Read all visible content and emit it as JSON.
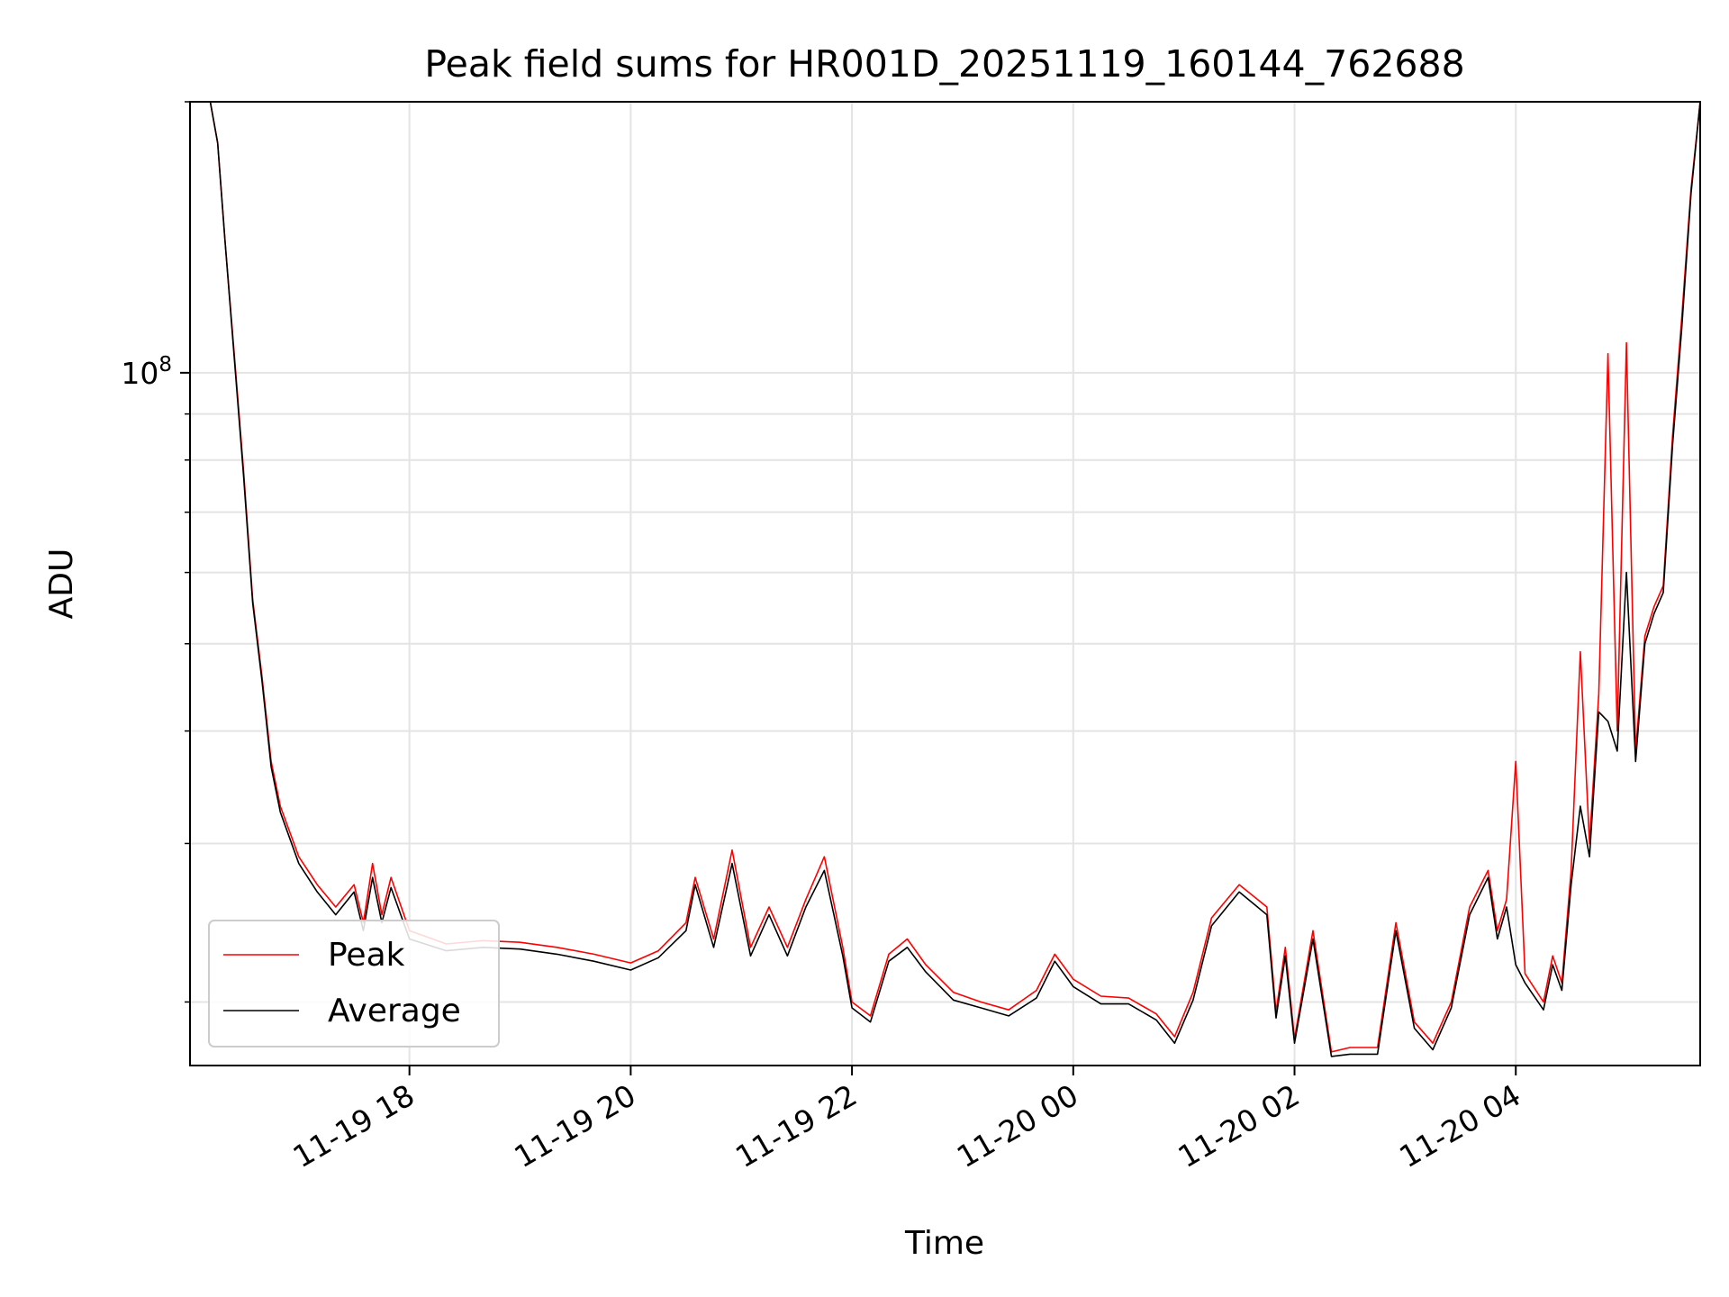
{
  "chart_data": {
    "type": "line",
    "title": "Peak field sums for HR001D_20251119_160144_762688",
    "xlabel": "Time",
    "ylabel": "ADU",
    "yscale": "log",
    "grid": true,
    "legend_position": "lower-left",
    "xlim": [
      "2025-11-19 16:01",
      "2025-11-20 05:40"
    ],
    "ylim": [
      17000000,
      200000000
    ],
    "x_ticks": [
      {
        "t": "2025-11-19 18:00",
        "label": "11-19 18"
      },
      {
        "t": "2025-11-19 20:00",
        "label": "11-19 20"
      },
      {
        "t": "2025-11-19 22:00",
        "label": "11-19 22"
      },
      {
        "t": "2025-11-20 00:00",
        "label": "11-20 00"
      },
      {
        "t": "2025-11-20 02:00",
        "label": "11-20 02"
      },
      {
        "t": "2025-11-20 04:00",
        "label": "11-20 04"
      }
    ],
    "y_major_ticks": [
      {
        "value": 100000000,
        "label": "10",
        "exponent": "8"
      }
    ],
    "y_minor_ticks": [
      20000000,
      30000000,
      40000000,
      50000000,
      60000000,
      70000000,
      80000000,
      90000000,
      200000000
    ],
    "series": [
      {
        "name": "Peak",
        "color": "#ff0000",
        "points": [
          [
            "2025-11-19 16:12",
            200000000
          ],
          [
            "2025-11-19 16:16",
            180000000
          ],
          [
            "2025-11-19 16:20",
            140000000
          ],
          [
            "2025-11-19 16:25",
            105000000
          ],
          [
            "2025-11-19 16:30",
            78000000
          ],
          [
            "2025-11-19 16:35",
            56000000
          ],
          [
            "2025-11-19 16:40",
            46000000
          ],
          [
            "2025-11-19 16:45",
            37000000
          ],
          [
            "2025-11-19 16:50",
            33000000
          ],
          [
            "2025-11-19 17:00",
            29000000
          ],
          [
            "2025-11-19 17:10",
            27000000
          ],
          [
            "2025-11-19 17:20",
            25500000
          ],
          [
            "2025-11-19 17:30",
            27000000
          ],
          [
            "2025-11-19 17:35",
            24500000
          ],
          [
            "2025-11-19 17:40",
            28500000
          ],
          [
            "2025-11-19 17:45",
            25000000
          ],
          [
            "2025-11-19 17:50",
            27500000
          ],
          [
            "2025-11-19 18:00",
            24000000
          ],
          [
            "2025-11-19 18:20",
            23200000
          ],
          [
            "2025-11-19 18:40",
            23400000
          ],
          [
            "2025-11-19 19:00",
            23300000
          ],
          [
            "2025-11-19 19:20",
            23000000
          ],
          [
            "2025-11-19 19:40",
            22600000
          ],
          [
            "2025-11-19 20:00",
            22100000
          ],
          [
            "2025-11-19 20:15",
            22800000
          ],
          [
            "2025-11-19 20:30",
            24500000
          ],
          [
            "2025-11-19 20:35",
            27500000
          ],
          [
            "2025-11-19 20:45",
            23500000
          ],
          [
            "2025-11-19 20:55",
            29500000
          ],
          [
            "2025-11-19 21:05",
            23000000
          ],
          [
            "2025-11-19 21:15",
            25500000
          ],
          [
            "2025-11-19 21:25",
            23000000
          ],
          [
            "2025-11-19 21:35",
            26000000
          ],
          [
            "2025-11-19 21:45",
            29000000
          ],
          [
            "2025-11-19 21:55",
            23000000
          ],
          [
            "2025-11-19 22:00",
            20000000
          ],
          [
            "2025-11-19 22:10",
            19300000
          ],
          [
            "2025-11-19 22:20",
            22600000
          ],
          [
            "2025-11-19 22:30",
            23500000
          ],
          [
            "2025-11-19 22:40",
            22000000
          ],
          [
            "2025-11-19 22:55",
            20500000
          ],
          [
            "2025-11-19 23:10",
            20000000
          ],
          [
            "2025-11-19 23:25",
            19600000
          ],
          [
            "2025-11-19 23:40",
            20600000
          ],
          [
            "2025-11-19 23:50",
            22600000
          ],
          [
            "2025-11-20 00:00",
            21200000
          ],
          [
            "2025-11-20 00:15",
            20300000
          ],
          [
            "2025-11-20 00:30",
            20200000
          ],
          [
            "2025-11-20 00:45",
            19400000
          ],
          [
            "2025-11-20 00:55",
            18300000
          ],
          [
            "2025-11-20 01:05",
            20500000
          ],
          [
            "2025-11-20 01:15",
            24800000
          ],
          [
            "2025-11-20 01:30",
            27000000
          ],
          [
            "2025-11-20 01:45",
            25500000
          ],
          [
            "2025-11-20 01:50",
            19500000
          ],
          [
            "2025-11-20 01:55",
            23000000
          ],
          [
            "2025-11-20 02:00",
            18200000
          ],
          [
            "2025-11-20 02:10",
            24000000
          ],
          [
            "2025-11-20 02:20",
            17600000
          ],
          [
            "2025-11-20 02:30",
            17800000
          ],
          [
            "2025-11-20 02:45",
            17800000
          ],
          [
            "2025-11-20 02:55",
            24500000
          ],
          [
            "2025-11-20 03:05",
            19000000
          ],
          [
            "2025-11-20 03:15",
            18000000
          ],
          [
            "2025-11-20 03:25",
            20000000
          ],
          [
            "2025-11-20 03:35",
            25500000
          ],
          [
            "2025-11-20 03:45",
            28000000
          ],
          [
            "2025-11-20 03:50",
            24000000
          ],
          [
            "2025-11-20 03:55",
            26000000
          ],
          [
            "2025-11-20 04:00",
            37000000
          ],
          [
            "2025-11-20 04:05",
            21500000
          ],
          [
            "2025-11-20 04:15",
            20000000
          ],
          [
            "2025-11-20 04:20",
            22500000
          ],
          [
            "2025-11-20 04:25",
            21000000
          ],
          [
            "2025-11-20 04:30",
            28000000
          ],
          [
            "2025-11-20 04:35",
            49000000
          ],
          [
            "2025-11-20 04:40",
            30000000
          ],
          [
            "2025-11-20 04:45",
            44000000
          ],
          [
            "2025-11-20 04:50",
            105000000
          ],
          [
            "2025-11-20 04:55",
            40000000
          ],
          [
            "2025-11-20 05:00",
            108000000
          ],
          [
            "2025-11-20 05:05",
            38000000
          ],
          [
            "2025-11-20 05:10",
            51000000
          ],
          [
            "2025-11-20 05:15",
            55000000
          ],
          [
            "2025-11-20 05:20",
            58000000
          ],
          [
            "2025-11-20 05:25",
            85000000
          ],
          [
            "2025-11-20 05:30",
            115000000
          ],
          [
            "2025-11-20 05:35",
            160000000
          ],
          [
            "2025-11-20 05:40",
            200000000
          ]
        ]
      },
      {
        "name": "Average",
        "color": "#000000",
        "points": [
          [
            "2025-11-19 16:12",
            200000000
          ],
          [
            "2025-11-19 16:16",
            180000000
          ],
          [
            "2025-11-19 16:20",
            140000000
          ],
          [
            "2025-11-19 16:25",
            104000000
          ],
          [
            "2025-11-19 16:30",
            77000000
          ],
          [
            "2025-11-19 16:35",
            55500000
          ],
          [
            "2025-11-19 16:40",
            45500000
          ],
          [
            "2025-11-19 16:45",
            36500000
          ],
          [
            "2025-11-19 16:50",
            32500000
          ],
          [
            "2025-11-19 17:00",
            28500000
          ],
          [
            "2025-11-19 17:10",
            26500000
          ],
          [
            "2025-11-19 17:20",
            25000000
          ],
          [
            "2025-11-19 17:30",
            26500000
          ],
          [
            "2025-11-19 17:35",
            24000000
          ],
          [
            "2025-11-19 17:40",
            27500000
          ],
          [
            "2025-11-19 17:45",
            24500000
          ],
          [
            "2025-11-19 17:50",
            26800000
          ],
          [
            "2025-11-19 18:00",
            23500000
          ],
          [
            "2025-11-19 18:20",
            22800000
          ],
          [
            "2025-11-19 18:40",
            23000000
          ],
          [
            "2025-11-19 19:00",
            22900000
          ],
          [
            "2025-11-19 19:20",
            22600000
          ],
          [
            "2025-11-19 19:40",
            22200000
          ],
          [
            "2025-11-19 20:00",
            21700000
          ],
          [
            "2025-11-19 20:15",
            22400000
          ],
          [
            "2025-11-19 20:30",
            24000000
          ],
          [
            "2025-11-19 20:35",
            27000000
          ],
          [
            "2025-11-19 20:45",
            23000000
          ],
          [
            "2025-11-19 20:55",
            28500000
          ],
          [
            "2025-11-19 21:05",
            22500000
          ],
          [
            "2025-11-19 21:15",
            25000000
          ],
          [
            "2025-11-19 21:25",
            22500000
          ],
          [
            "2025-11-19 21:35",
            25500000
          ],
          [
            "2025-11-19 21:45",
            28000000
          ],
          [
            "2025-11-19 21:55",
            22500000
          ],
          [
            "2025-11-19 22:00",
            19700000
          ],
          [
            "2025-11-19 22:10",
            19000000
          ],
          [
            "2025-11-19 22:20",
            22200000
          ],
          [
            "2025-11-19 22:30",
            23000000
          ],
          [
            "2025-11-19 22:40",
            21600000
          ],
          [
            "2025-11-19 22:55",
            20100000
          ],
          [
            "2025-11-19 23:10",
            19700000
          ],
          [
            "2025-11-19 23:25",
            19300000
          ],
          [
            "2025-11-19 23:40",
            20200000
          ],
          [
            "2025-11-19 23:50",
            22200000
          ],
          [
            "2025-11-20 00:00",
            20800000
          ],
          [
            "2025-11-20 00:15",
            19900000
          ],
          [
            "2025-11-20 00:30",
            19900000
          ],
          [
            "2025-11-20 00:45",
            19100000
          ],
          [
            "2025-11-20 00:55",
            18000000
          ],
          [
            "2025-11-20 01:05",
            20100000
          ],
          [
            "2025-11-20 01:15",
            24300000
          ],
          [
            "2025-11-20 01:30",
            26500000
          ],
          [
            "2025-11-20 01:45",
            25000000
          ],
          [
            "2025-11-20 01:50",
            19200000
          ],
          [
            "2025-11-20 01:55",
            22500000
          ],
          [
            "2025-11-20 02:00",
            18000000
          ],
          [
            "2025-11-20 02:10",
            23500000
          ],
          [
            "2025-11-20 02:20",
            17400000
          ],
          [
            "2025-11-20 02:30",
            17500000
          ],
          [
            "2025-11-20 02:45",
            17500000
          ],
          [
            "2025-11-20 02:55",
            24000000
          ],
          [
            "2025-11-20 03:05",
            18700000
          ],
          [
            "2025-11-20 03:15",
            17700000
          ],
          [
            "2025-11-20 03:25",
            19700000
          ],
          [
            "2025-11-20 03:35",
            25000000
          ],
          [
            "2025-11-20 03:45",
            27500000
          ],
          [
            "2025-11-20 03:50",
            23500000
          ],
          [
            "2025-11-20 03:55",
            25500000
          ],
          [
            "2025-11-20 04:00",
            22000000
          ],
          [
            "2025-11-20 04:05",
            21000000
          ],
          [
            "2025-11-20 04:15",
            19600000
          ],
          [
            "2025-11-20 04:20",
            22000000
          ],
          [
            "2025-11-20 04:25",
            20600000
          ],
          [
            "2025-11-20 04:30",
            27000000
          ],
          [
            "2025-11-20 04:35",
            33000000
          ],
          [
            "2025-11-20 04:40",
            29000000
          ],
          [
            "2025-11-20 04:45",
            42000000
          ],
          [
            "2025-11-20 04:50",
            41000000
          ],
          [
            "2025-11-20 04:55",
            38000000
          ],
          [
            "2025-11-20 05:00",
            60000000
          ],
          [
            "2025-11-20 05:05",
            37000000
          ],
          [
            "2025-11-20 05:10",
            50000000
          ],
          [
            "2025-11-20 05:15",
            54000000
          ],
          [
            "2025-11-20 05:20",
            57000000
          ],
          [
            "2025-11-20 05:25",
            83000000
          ],
          [
            "2025-11-20 05:30",
            112000000
          ],
          [
            "2025-11-20 05:35",
            158000000
          ],
          [
            "2025-11-20 05:40",
            200000000
          ]
        ]
      }
    ]
  }
}
